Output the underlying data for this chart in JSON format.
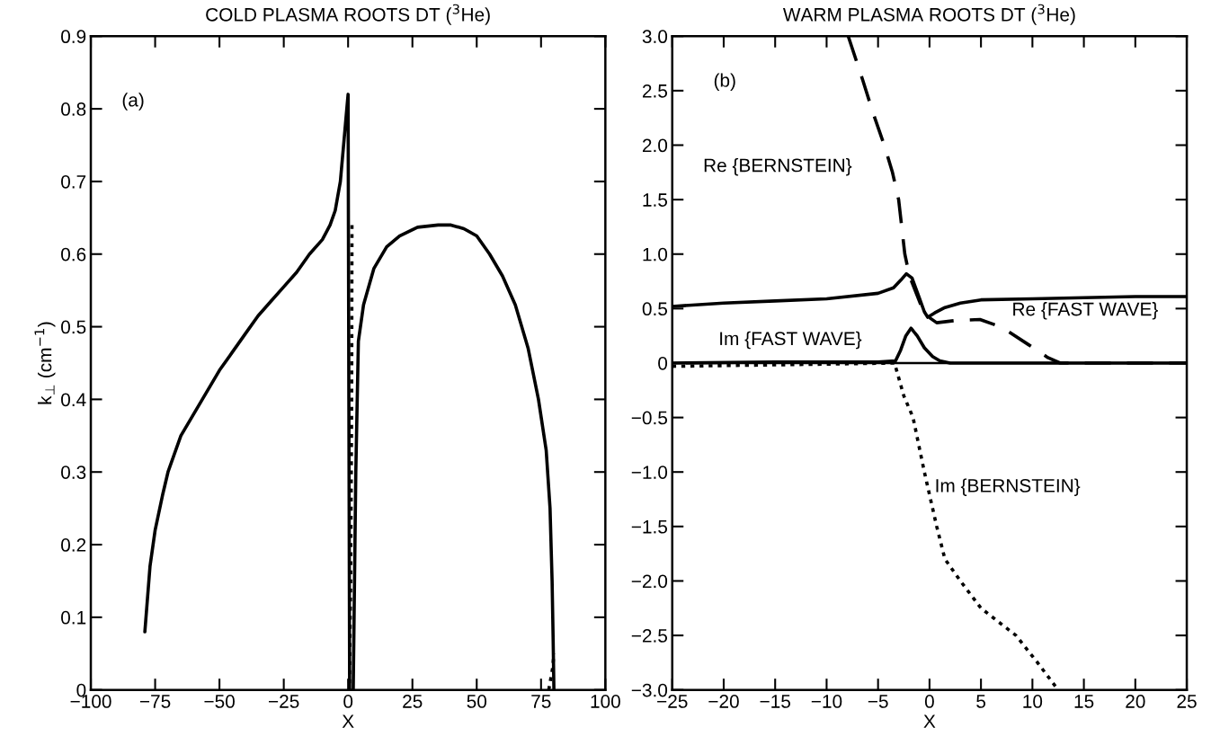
{
  "chart_data": [
    {
      "type": "line",
      "title": "COLD PLASMA ROOTS DT ($^{3}$He)",
      "xlabel": "X",
      "ylabel": "k$_{⊥}$ (cm$^{−1}$)",
      "xlim": [
        -100,
        100
      ],
      "ylim": [
        0,
        0.9
      ],
      "xticks": [
        {
          "value": -100,
          "label": "−100"
        },
        {
          "value": -75,
          "label": "−75"
        },
        {
          "value": -50,
          "label": "−50"
        },
        {
          "value": -25,
          "label": "−25"
        },
        0,
        25,
        50,
        75,
        100
      ],
      "yticks": [
        0,
        0.1,
        0.2,
        0.3,
        0.4,
        0.5,
        0.6,
        0.7,
        0.8,
        0.9
      ],
      "grid": false,
      "marker": "none",
      "series": [
        {
          "color": "#000000",
          "line_style": "solid",
          "x": [
            -79,
            -77,
            -75,
            -72,
            -70,
            -65,
            -60,
            -55,
            -50,
            -45,
            -40,
            -35,
            -30,
            -25,
            -20,
            -15,
            -10,
            -7,
            -5,
            -3,
            -2,
            -1,
            0,
            0.3,
            0.6
          ],
          "values": [
            0.08,
            0.17,
            0.22,
            0.27,
            0.3,
            0.35,
            0.38,
            0.41,
            0.44,
            0.465,
            0.49,
            0.515,
            0.535,
            0.555,
            0.575,
            0.6,
            0.62,
            0.64,
            0.66,
            0.7,
            0.74,
            0.78,
            0.82,
            0.4,
            0
          ]
        },
        {
          "color": "#000000",
          "line_style": "solid",
          "x": [
            2,
            3,
            4,
            6,
            10,
            15,
            20,
            27,
            35,
            40,
            45,
            50,
            55,
            60,
            65,
            70,
            74,
            77,
            78.5,
            79.3,
            79.7,
            80
          ],
          "values": [
            0,
            0.3,
            0.48,
            0.53,
            0.58,
            0.61,
            0.625,
            0.637,
            0.64,
            0.64,
            0.635,
            0.625,
            0.6,
            0.57,
            0.53,
            0.47,
            0.4,
            0.33,
            0.25,
            0.15,
            0.07,
            0
          ]
        },
        {
          "color": "#000000",
          "line_style": "dotted",
          "x": [
            1.5,
            1.4,
            1.0,
            0.5
          ],
          "values": [
            0.64,
            0.4,
            0.15,
            0
          ]
        },
        {
          "color": "#000000",
          "line_style": "dotted",
          "x": [
            78,
            79.5,
            80
          ],
          "values": [
            0,
            0.03,
            0.05
          ]
        }
      ],
      "annotations": [
        "(a)"
      ]
    },
    {
      "type": "line",
      "title": "WARM PLASMA ROOTS DT ($^{3}$He)",
      "xlabel": "X",
      "xlim": [
        -25,
        25
      ],
      "ylim": [
        -3,
        3
      ],
      "xticks": [
        {
          "value": -25,
          "label": "−25"
        },
        {
          "value": -20,
          "label": "−20"
        },
        {
          "value": -15,
          "label": "−15"
        },
        {
          "value": -10,
          "label": "−10"
        },
        {
          "value": -5,
          "label": "−5"
        },
        0,
        5,
        10,
        15,
        20,
        25
      ],
      "yticks": [
        {
          "value": 3,
          "label": "3.0"
        },
        {
          "value": 2.5,
          "label": "2.5"
        },
        {
          "value": 2,
          "label": "2.0"
        },
        {
          "value": 1.5,
          "label": "1.5"
        },
        {
          "value": 1,
          "label": "1.0"
        },
        {
          "value": 0.5,
          "label": "0.5"
        },
        {
          "value": 0,
          "label": "0"
        },
        {
          "value": -0.5,
          "label": "−0.5"
        },
        {
          "value": -1,
          "label": "−1.0"
        },
        {
          "value": -1.5,
          "label": "−1.5"
        },
        {
          "value": -2,
          "label": "−2.0"
        },
        {
          "value": -2.5,
          "label": "−2.5"
        },
        {
          "value": -3,
          "label": "−3.0"
        }
      ],
      "grid": false,
      "marker": "none",
      "ref_lines": [
        {
          "axis": "y",
          "value": 0,
          "color": "#000000",
          "line_style": "solid"
        }
      ],
      "series": [
        {
          "color": "#000000",
          "line_style": "dashed",
          "x": [
            -7.9,
            -6.5,
            -5.5,
            -4.4,
            -3.6,
            -3.0,
            -2.4,
            -1.95,
            -1.2,
            -0.5,
            0.7,
            2.5,
            4.9,
            7,
            9.6,
            11.5,
            12.7,
            18,
            25
          ],
          "values": [
            3.0,
            2.6,
            2.3,
            2.0,
            1.75,
            1.5,
            1.0,
            0.8,
            0.62,
            0.45,
            0.37,
            0.39,
            0.4,
            0.33,
            0.17,
            0.05,
            0,
            0,
            0
          ]
        },
        {
          "color": "#000000",
          "line_style": "solid",
          "x": [
            -25,
            -20,
            -15,
            -10,
            -5,
            -3.5,
            -2.8,
            -2.25,
            -1.7,
            -1.0,
            -0.5,
            -0.17,
            0.5,
            1.5,
            3,
            5,
            10,
            15,
            20,
            25
          ],
          "values": [
            0.52,
            0.55,
            0.57,
            0.59,
            0.64,
            0.69,
            0.76,
            0.82,
            0.78,
            0.6,
            0.47,
            0.42,
            0.46,
            0.51,
            0.55,
            0.58,
            0.59,
            0.6,
            0.61,
            0.61
          ]
        },
        {
          "color": "#000000",
          "line_style": "solid",
          "x": [
            -25,
            -15,
            -5,
            -3.3,
            -2.8,
            -2.3,
            -1.8,
            -1.2,
            -0.5,
            0.3,
            1,
            2,
            5,
            25
          ],
          "values": [
            0,
            0.01,
            0.01,
            0.02,
            0.12,
            0.25,
            0.32,
            0.25,
            0.14,
            0.06,
            0.02,
            0,
            0,
            0
          ]
        },
        {
          "color": "#000000",
          "line_style": "dotted",
          "x": [
            -25,
            -10,
            -3.4,
            -2.5,
            -1.6,
            -0.5,
            0.7,
            1.5,
            3,
            5,
            8.4,
            10.5,
            12.5
          ],
          "values": [
            -0.03,
            -0.01,
            0,
            -0.3,
            -0.5,
            -1.0,
            -1.5,
            -1.8,
            -2.0,
            -2.25,
            -2.5,
            -2.75,
            -3.0
          ]
        }
      ],
      "annotations": [
        "(b)",
        "Re {BERNSTEIN}",
        "Re {FAST WAVE}",
        "Im {FAST WAVE}",
        "Im {BERNSTEIN}"
      ]
    }
  ]
}
